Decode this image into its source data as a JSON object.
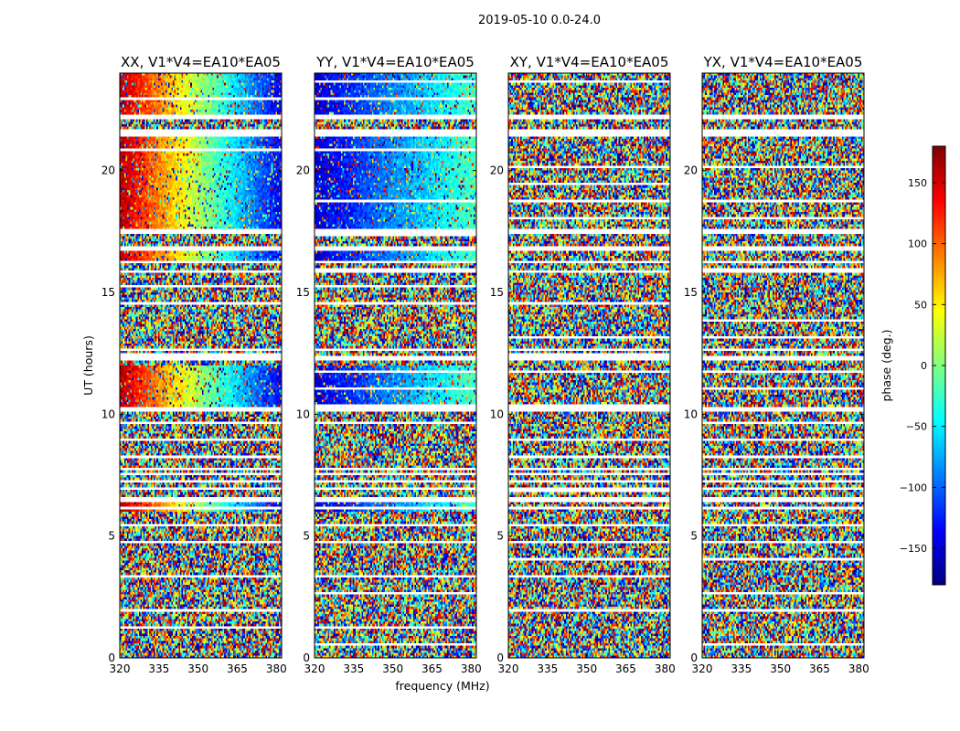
{
  "figure": {
    "suptitle": "2019-05-10 0.0-24.0"
  },
  "chart_data": {
    "type": "heatmap",
    "xlabel": "frequency (MHz)",
    "ylabel": "UT (hours)",
    "xlim": [
      320,
      382
    ],
    "ylim": [
      0,
      24
    ],
    "xticks": [
      "320",
      "335",
      "350",
      "365",
      "380"
    ],
    "yticks": [
      "0",
      "5",
      "10",
      "15",
      "20"
    ],
    "colormap": "jet",
    "colorbar": {
      "label": "phase (deg.)",
      "range": [
        -180,
        180
      ],
      "ticks": [
        "150",
        "100",
        "50",
        "0",
        "−50",
        "−100",
        "−150"
      ],
      "tick_values": [
        150,
        100,
        50,
        0,
        -50,
        -100,
        -150
      ],
      "stops": [
        "#00007f",
        "#0000ff",
        "#007fff",
        "#00ffff",
        "#7fff7f",
        "#ffff00",
        "#ff7f00",
        "#ff0000",
        "#7f0000"
      ]
    },
    "panels": [
      {
        "title": "XX, V1*V4=EA10*EA05",
        "structured": true,
        "coherent_ut_ranges": [
          [
            6.05,
            6.45
          ],
          [
            10.3,
            12.0
          ],
          [
            16.3,
            16.7
          ],
          [
            17.6,
            21.4
          ],
          [
            22.3,
            24.0
          ]
        ],
        "phase_start_deg": 160,
        "phase_end_deg": -140
      },
      {
        "title": "YY, V1*V4=EA10*EA05",
        "structured": true,
        "coherent_ut_ranges": [
          [
            6.05,
            6.45
          ],
          [
            10.3,
            12.0
          ],
          [
            16.3,
            16.7
          ],
          [
            17.6,
            21.4
          ],
          [
            22.3,
            24.0
          ]
        ],
        "phase_start_deg": -150,
        "phase_end_deg": -20
      },
      {
        "title": "XY, V1*V4=EA10*EA05",
        "structured": false,
        "coherent_ut_ranges": [],
        "phase_start_deg": 0,
        "phase_end_deg": 0
      },
      {
        "title": "YX, V1*V4=EA10*EA05",
        "structured": false,
        "coherent_ut_ranges": [],
        "phase_start_deg": 0,
        "phase_end_deg": 0
      }
    ],
    "flagged_ut_ranges": [
      [
        5.95,
        6.05
      ],
      [
        6.45,
        6.6
      ],
      [
        6.9,
        7.0
      ],
      [
        7.2,
        7.3
      ],
      [
        7.45,
        7.6
      ],
      [
        7.7,
        7.8
      ],
      [
        10.1,
        10.3
      ],
      [
        12.25,
        12.4
      ],
      [
        12.55,
        12.65
      ],
      [
        15.8,
        15.9
      ],
      [
        16.2,
        16.3
      ],
      [
        16.7,
        16.85
      ],
      [
        17.4,
        17.6
      ],
      [
        21.4,
        21.65
      ],
      [
        22.1,
        22.3
      ]
    ]
  }
}
